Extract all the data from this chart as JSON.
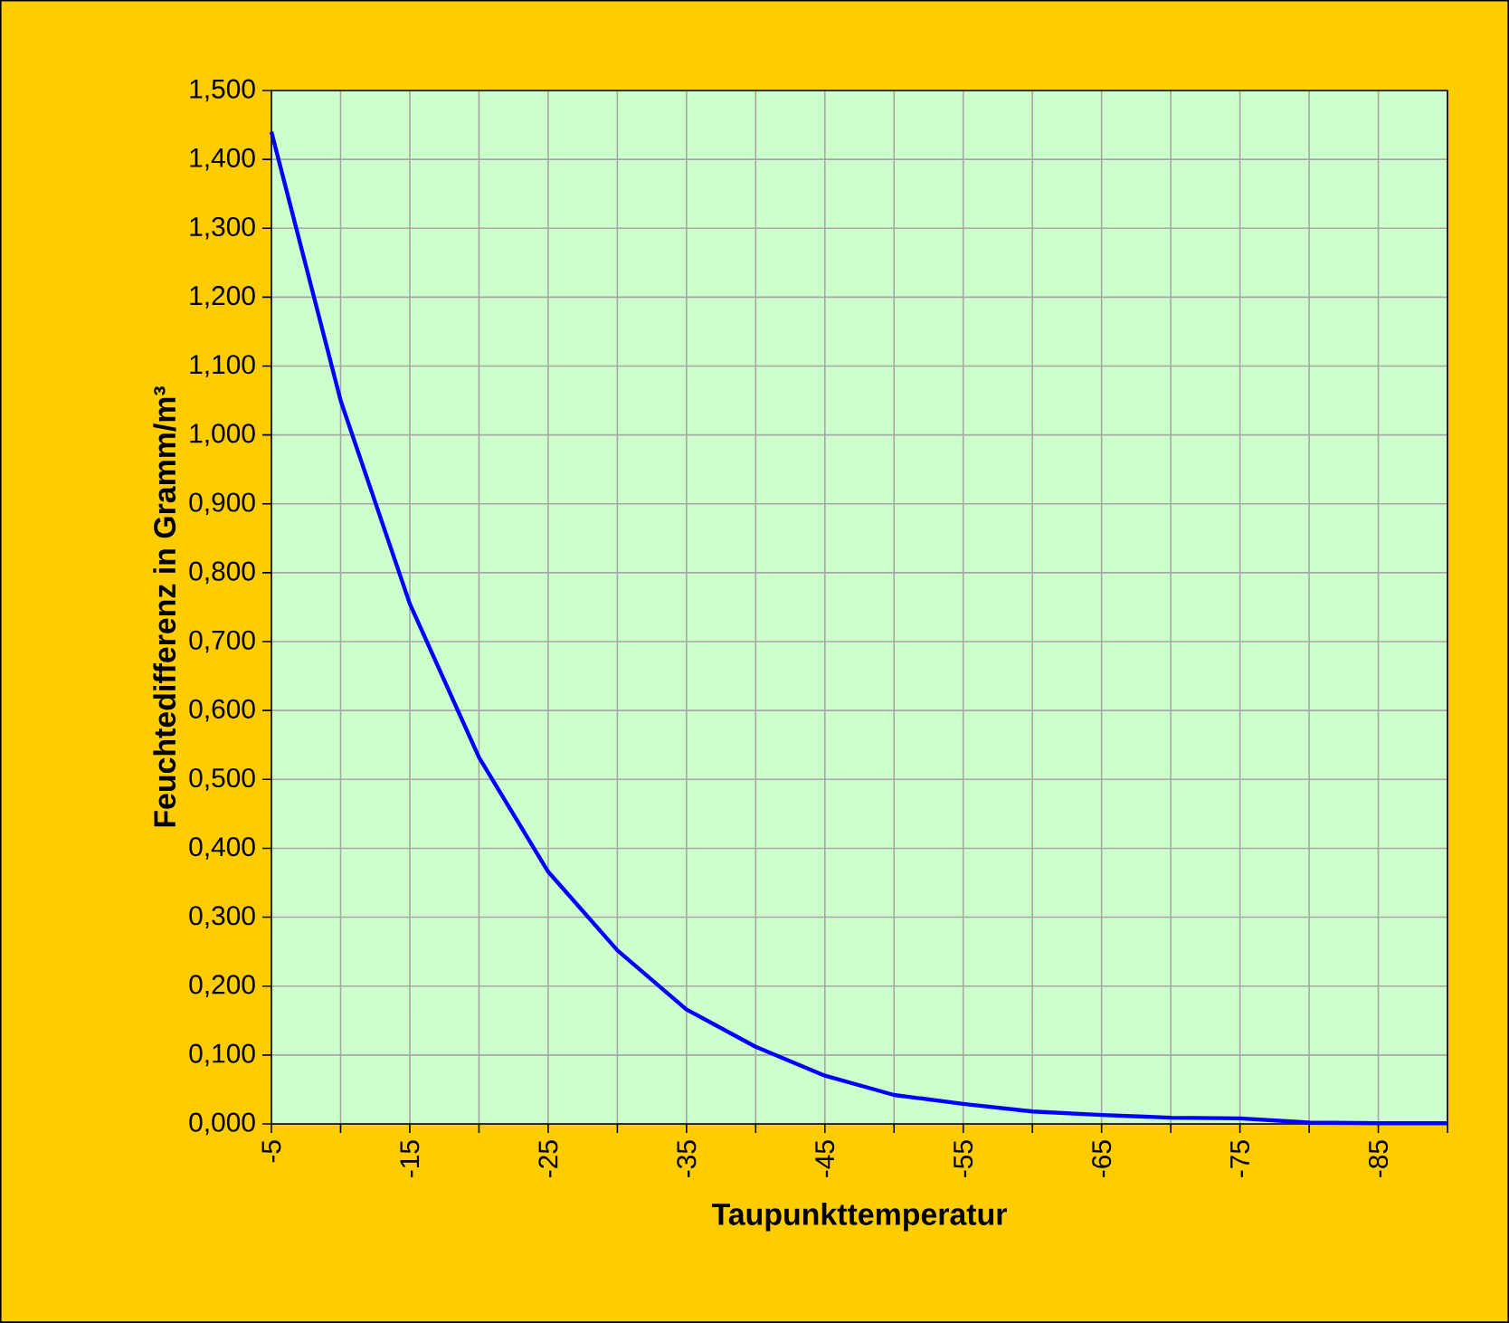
{
  "chart_data": {
    "type": "line",
    "xlabel": "Taupunkttemperatur",
    "ylabel": "Feuchtedifferenz in Gramm/m³",
    "categories": [
      "-5",
      null,
      "-15",
      null,
      "-25",
      null,
      "-35",
      null,
      "-45",
      null,
      "-55",
      null,
      "-65",
      null,
      "-75",
      null,
      "-85",
      null
    ],
    "series": [
      {
        "color": "#0000ff",
        "values": [
          1.44,
          1.05,
          0.755,
          0.532,
          0.366,
          0.252,
          0.166,
          0.112,
          0.07,
          0.042,
          0.029,
          0.018,
          0.013,
          0.009,
          0.008,
          0.002,
          0.001,
          0.001
        ]
      }
    ],
    "ylim": [
      0,
      1.5
    ],
    "yticks": [
      {
        "value": 0,
        "label": "0,000"
      },
      {
        "value": 0.1,
        "label": "0,100"
      },
      {
        "value": 0.2,
        "label": "0,200"
      },
      {
        "value": 0.3,
        "label": "0,300"
      },
      {
        "value": 0.4,
        "label": "0,400"
      },
      {
        "value": 0.5,
        "label": "0,500"
      },
      {
        "value": 0.6,
        "label": "0,600"
      },
      {
        "value": 0.7,
        "label": "0,700"
      },
      {
        "value": 0.8,
        "label": "0,800"
      },
      {
        "value": 0.9,
        "label": "0,900"
      },
      {
        "value": 1.0,
        "label": "1,000"
      },
      {
        "value": 1.1,
        "label": "1,100"
      },
      {
        "value": 1.2,
        "label": "1,200"
      },
      {
        "value": 1.3,
        "label": "1,300"
      },
      {
        "value": 1.4,
        "label": "1,400"
      },
      {
        "value": 1.5,
        "label": "1,500"
      }
    ],
    "grid": true,
    "marker": "none",
    "line_style": "solid"
  }
}
